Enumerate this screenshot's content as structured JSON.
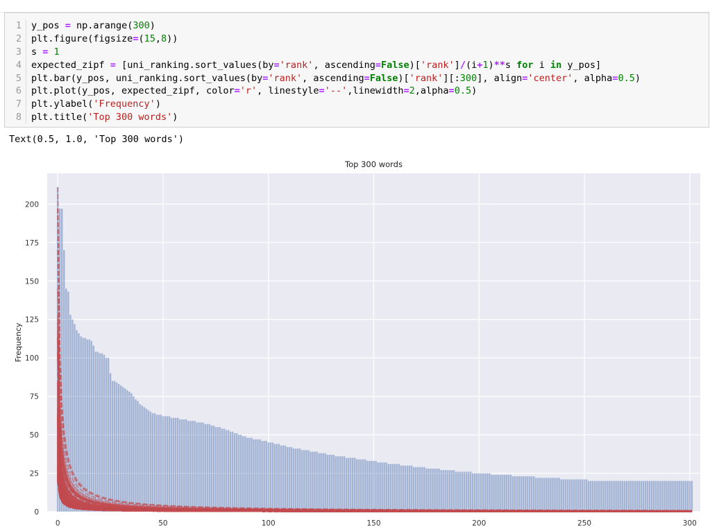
{
  "code_cell": {
    "lines": [
      {
        "num": "1",
        "tokens": [
          [
            "y_pos ",
            "fn"
          ],
          [
            "=",
            "op"
          ],
          [
            " np.arange(",
            "fn"
          ],
          [
            "300",
            "num"
          ],
          [
            ")",
            "fn"
          ]
        ]
      },
      {
        "num": "2",
        "tokens": [
          [
            "plt.figure(figsize",
            "fn"
          ],
          [
            "=",
            "op"
          ],
          [
            "(",
            "fn"
          ],
          [
            "15",
            "num"
          ],
          [
            ",",
            "fn"
          ],
          [
            "8",
            "num"
          ],
          [
            "))",
            "fn"
          ]
        ]
      },
      {
        "num": "3",
        "tokens": [
          [
            "s ",
            "fn"
          ],
          [
            "=",
            "op"
          ],
          [
            " ",
            "fn"
          ],
          [
            "1",
            "num"
          ]
        ]
      },
      {
        "num": "4",
        "tokens": [
          [
            "expected_zipf ",
            "fn"
          ],
          [
            "=",
            "op"
          ],
          [
            " [uni_ranking.sort_values(by",
            "fn"
          ],
          [
            "=",
            "op"
          ],
          [
            "'rank'",
            "str"
          ],
          [
            ", ascending",
            "fn"
          ],
          [
            "=",
            "op"
          ],
          [
            "False",
            "kw"
          ],
          [
            ")[",
            "fn"
          ],
          [
            "'rank'",
            "str"
          ],
          [
            "]",
            "fn"
          ],
          [
            "/",
            "op"
          ],
          [
            "(i",
            "fn"
          ],
          [
            "+",
            "op"
          ],
          [
            "1",
            "num"
          ],
          [
            ")",
            "fn"
          ],
          [
            "**",
            "op"
          ],
          [
            "s ",
            "fn"
          ],
          [
            "for",
            "kw"
          ],
          [
            " i ",
            "fn"
          ],
          [
            "in",
            "kw"
          ],
          [
            " y_pos]",
            "fn"
          ]
        ]
      },
      {
        "num": "5",
        "tokens": [
          [
            "plt.bar(y_pos, uni_ranking.sort_values(by",
            "fn"
          ],
          [
            "=",
            "op"
          ],
          [
            "'rank'",
            "str"
          ],
          [
            ", ascending",
            "fn"
          ],
          [
            "=",
            "op"
          ],
          [
            "False",
            "kw"
          ],
          [
            ")[",
            "fn"
          ],
          [
            "'rank'",
            "str"
          ],
          [
            "][:",
            "fn"
          ],
          [
            "300",
            "num"
          ],
          [
            "], align",
            "fn"
          ],
          [
            "=",
            "op"
          ],
          [
            "'center'",
            "str"
          ],
          [
            ", alpha",
            "fn"
          ],
          [
            "=",
            "op"
          ],
          [
            "0.5",
            "num"
          ],
          [
            ")",
            "fn"
          ]
        ]
      },
      {
        "num": "6",
        "tokens": [
          [
            "plt.plot(y_pos, expected_zipf, color",
            "fn"
          ],
          [
            "=",
            "op"
          ],
          [
            "'r'",
            "str"
          ],
          [
            ", linestyle",
            "fn"
          ],
          [
            "=",
            "op"
          ],
          [
            "'--'",
            "str"
          ],
          [
            ",linewidth",
            "fn"
          ],
          [
            "=",
            "op"
          ],
          [
            "2",
            "num"
          ],
          [
            ",alpha",
            "fn"
          ],
          [
            "=",
            "op"
          ],
          [
            "0.5",
            "num"
          ],
          [
            ")",
            "fn"
          ]
        ]
      },
      {
        "num": "7",
        "tokens": [
          [
            "plt.ylabel(",
            "fn"
          ],
          [
            "'Frequency'",
            "str"
          ],
          [
            ")",
            "fn"
          ]
        ]
      },
      {
        "num": "8",
        "tokens": [
          [
            "plt.title(",
            "fn"
          ],
          [
            "'Top 300 words'",
            "str"
          ],
          [
            ")",
            "fn"
          ]
        ]
      }
    ]
  },
  "output": {
    "text": "Text(0.5, 1.0, 'Top 300 words')"
  },
  "chart_data": {
    "type": "bar",
    "title": "Top 300 words",
    "xlabel": "",
    "ylabel": "Frequency",
    "xlim": [
      -5,
      305
    ],
    "ylim": [
      0,
      220
    ],
    "x_ticks": [
      0,
      50,
      100,
      150,
      200,
      250,
      300
    ],
    "y_ticks": [
      0,
      25,
      50,
      75,
      100,
      125,
      150,
      175,
      200
    ],
    "grid": true,
    "bar_color": "#4c72b0",
    "line_color": "#c44e52",
    "background": "#eaeaf2",
    "series": [
      {
        "style": "bar",
        "values": [
          211,
          197,
          197,
          170,
          145,
          143,
          128,
          125,
          122,
          118,
          116,
          114,
          113,
          113,
          112,
          112,
          111,
          108,
          104,
          104,
          103,
          103,
          102,
          100,
          100,
          90,
          85,
          85,
          84,
          83,
          82,
          81,
          80,
          79,
          78,
          77,
          75,
          73,
          72,
          70,
          69,
          68,
          67,
          66,
          65,
          64,
          64,
          63,
          63,
          63,
          62,
          62,
          62,
          62,
          61,
          61,
          61,
          61,
          60,
          60,
          60,
          60,
          59,
          59,
          59,
          59,
          58,
          58,
          58,
          58,
          57,
          57,
          57,
          56,
          56,
          55,
          55,
          55,
          54,
          54,
          53,
          53,
          52,
          52,
          51,
          51,
          50,
          50,
          49,
          49,
          48,
          48,
          48,
          47,
          47,
          47,
          47,
          46,
          46,
          46,
          45,
          45,
          45,
          44,
          44,
          44,
          43,
          43,
          43,
          42,
          42,
          42,
          41,
          41,
          41,
          41,
          40,
          40,
          40,
          40,
          39,
          39,
          39,
          39,
          38,
          38,
          38,
          38,
          37,
          37,
          37,
          37,
          36,
          36,
          36,
          36,
          36,
          35,
          35,
          35,
          35,
          35,
          34,
          34,
          34,
          34,
          34,
          33,
          33,
          33,
          33,
          33,
          32,
          32,
          32,
          32,
          32,
          31,
          31,
          31,
          31,
          31,
          31,
          30,
          30,
          30,
          30,
          30,
          30,
          29,
          29,
          29,
          29,
          29,
          29,
          28,
          28,
          28,
          28,
          28,
          28,
          28,
          27,
          27,
          27,
          27,
          27,
          27,
          27,
          26,
          26,
          26,
          26,
          26,
          26,
          26,
          26,
          25,
          25,
          25,
          25,
          25,
          25,
          25,
          25,
          25,
          24,
          24,
          24,
          24,
          24,
          24,
          24,
          24,
          24,
          24,
          23,
          23,
          23,
          23,
          23,
          23,
          23,
          23,
          23,
          23,
          23,
          22,
          22,
          22,
          22,
          22,
          22,
          22,
          22,
          22,
          22,
          22,
          22,
          21,
          21,
          21,
          21,
          21,
          21,
          21,
          21,
          21,
          21,
          21,
          21,
          21,
          20,
          20,
          20,
          20,
          20,
          20,
          20,
          20,
          20,
          20,
          20,
          20,
          20,
          20,
          20,
          20,
          20,
          20,
          20,
          20,
          20,
          20,
          20,
          20,
          20,
          20,
          20,
          20,
          20,
          20,
          20,
          20,
          20,
          20,
          20,
          20,
          20,
          20,
          20,
          20,
          20,
          20,
          20,
          20,
          20,
          20,
          20,
          20,
          20,
          20
        ]
      },
      {
        "style": "dashed-line",
        "formula": "expected_zipf = sorted_rank[j] / (i+1)"
      }
    ]
  }
}
